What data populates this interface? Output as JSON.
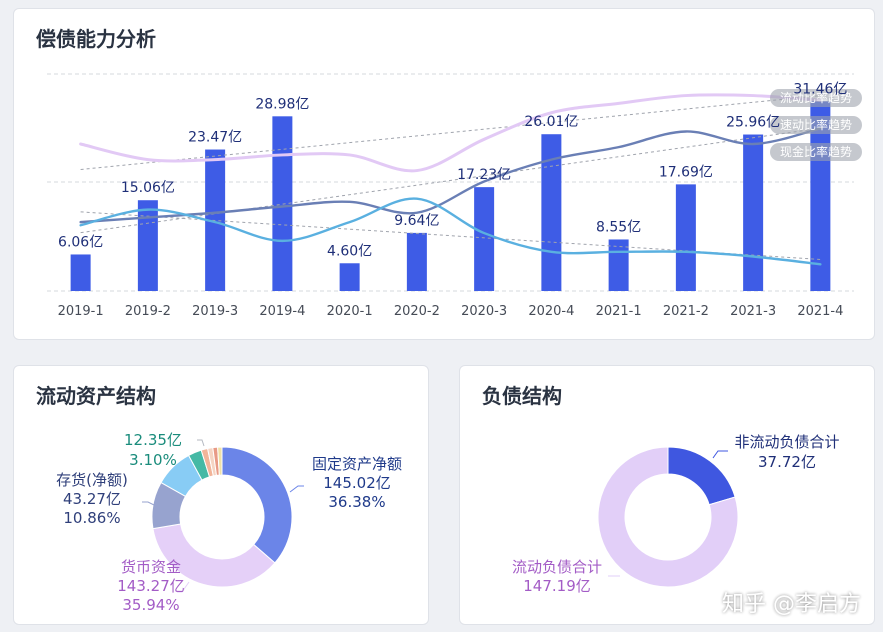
{
  "top": {
    "title": "偿债能力分析",
    "chart_data": {
      "type": "bar",
      "categories": [
        "2019-1",
        "2019-2",
        "2019-3",
        "2019-4",
        "2020-1",
        "2020-2",
        "2020-3",
        "2020-4",
        "2021-1",
        "2021-2",
        "2021-3",
        "2021-4"
      ],
      "series": [
        {
          "values": [
            6.06,
            15.06,
            23.47,
            28.98,
            4.6,
            9.64,
            17.23,
            26.01,
            8.55,
            17.69,
            25.96,
            31.46
          ],
          "labels": [
            "6.06亿",
            "15.06亿",
            "23.47亿",
            "28.98亿",
            "4.60亿",
            "9.64亿",
            "17.23亿",
            "26.01亿",
            "8.55亿",
            "17.69亿",
            "25.96亿",
            "31.46亿"
          ]
        }
      ],
      "trend_lines": [
        {
          "name": "流动比率趋势",
          "color": "#e2c9f5",
          "values": [
            1.62,
            1.52,
            1.52,
            1.55,
            1.55,
            1.45,
            1.65,
            1.82,
            1.88,
            1.93,
            1.93,
            1.9
          ]
        },
        {
          "name": "速动比率趋势",
          "color": "#6a7fb5",
          "values": [
            1.12,
            1.15,
            1.18,
            1.22,
            1.25,
            1.18,
            1.38,
            1.52,
            1.6,
            1.7,
            1.62,
            1.72
          ]
        },
        {
          "name": "现金比率趋势",
          "color": "#5ab0e0",
          "values": [
            1.1,
            1.2,
            1.12,
            1.0,
            1.12,
            1.27,
            1.05,
            0.93,
            0.93,
            0.93,
            0.9,
            0.85
          ]
        }
      ],
      "ylim": [
        0,
        36
      ],
      "grid": true
    }
  },
  "left": {
    "title": "流动资产结构",
    "chart_data": {
      "type": "pie",
      "style": "donut",
      "slices": [
        {
          "name": "固定资产净额",
          "amount": "145.02亿",
          "percent": "36.38%",
          "value": 36.38,
          "color": "#6b85e8"
        },
        {
          "name": "货币资金",
          "amount": "143.27亿",
          "percent": "35.94%",
          "value": 35.94,
          "color": "#e5d0f8"
        },
        {
          "name": "存货(净额)",
          "amount": "43.27亿",
          "percent": "10.86%",
          "value": 10.86,
          "color": "#97a3cf"
        },
        {
          "name": "",
          "amount": "",
          "percent": "",
          "value": 8.9,
          "color": "#88ccf5"
        },
        {
          "name": "",
          "amount": "12.35亿",
          "percent": "3.10%",
          "value": 3.1,
          "color": "#45b9a5"
        },
        {
          "name": "",
          "amount": "",
          "percent": "",
          "value": 1.5,
          "color": "#f2b499"
        },
        {
          "name": "",
          "amount": "",
          "percent": "",
          "value": 1.2,
          "color": "#f5d4c3"
        },
        {
          "name": "",
          "amount": "",
          "percent": "",
          "value": 1.1,
          "color": "#e89a86"
        },
        {
          "name": "",
          "amount": "",
          "percent": "",
          "value": 1.0,
          "color": "#f0e1a6"
        }
      ]
    }
  },
  "right": {
    "title": "负债结构",
    "chart_data": {
      "type": "pie",
      "style": "donut",
      "slices": [
        {
          "name": "非流动负债合计",
          "amount": "37.72亿",
          "value": 37.72,
          "color": "#3f57e0"
        },
        {
          "name": "流动负债合计",
          "amount": "147.19亿",
          "value": 147.19,
          "color": "#e2cff8"
        }
      ]
    }
  },
  "watermark": "知乎 @李启方"
}
